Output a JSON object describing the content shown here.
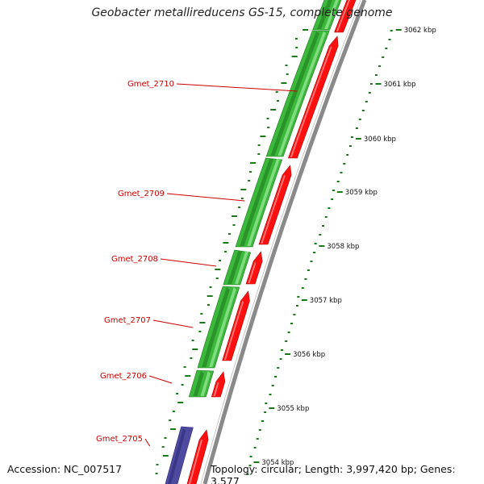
{
  "title": "Geobacter metallireducens GS-15, complete genome",
  "footer": {
    "accession": "Accession: NC_007517",
    "summary": "Topology: circular; Length: 3,997,420 bp; Genes: 3,577"
  },
  "colors": {
    "forward_cds": "#ff1010",
    "reverse_cds": "#3cb83c",
    "other_gene": "#4e4aa0",
    "backbone": "#8a8a8a",
    "ticks": "#1a7a1a",
    "gene_label": "#cc0000"
  },
  "gene_labels": [
    "Gmet_2710",
    "Gmet_2709",
    "Gmet_2708",
    "Gmet_2707",
    "Gmet_2706",
    "Gmet_2705"
  ],
  "scale_labels": [
    "3062 kbp",
    "3061 kbp",
    "3060 kbp",
    "3059 kbp",
    "3058 kbp",
    "3057 kbp",
    "3056 kbp",
    "3055 kbp",
    "3054 kbp"
  ]
}
